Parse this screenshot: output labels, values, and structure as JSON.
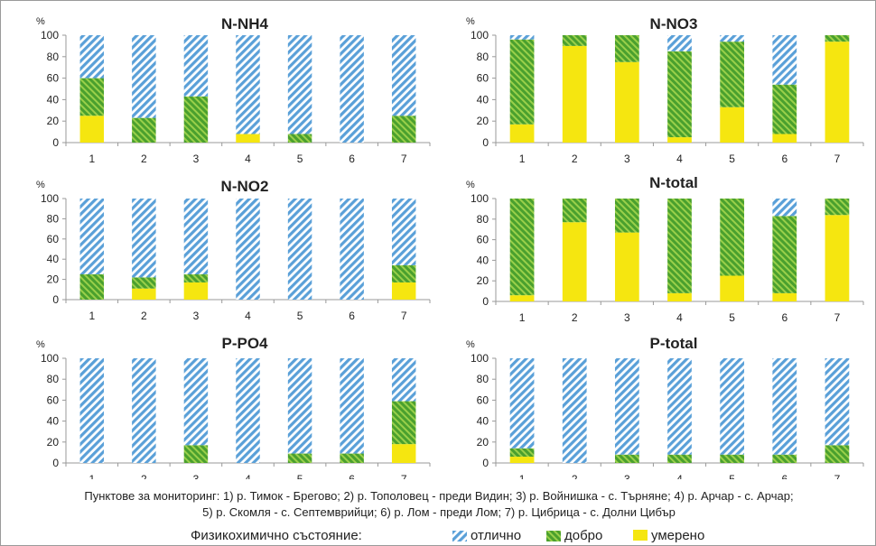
{
  "unit_label": "%",
  "categories_pattern": [
    "отлично",
    "добро",
    "умерено"
  ],
  "colors": {
    "отлично": "#5aa0d8",
    "добро": "#4aa02e",
    "умерено": "#f5e610",
    "axis": "#999999"
  },
  "footnote": {
    "line1": "Пунктове за мониторинг: 1) р. Тимок - Брегово;  2) р. Тополовец - преди Видин;  3) р. Войнишка - с. Търняне;  4)  р. Арчар - с. Арчар;",
    "line2": "5) р. Скомля - с. Септемврийци;  6) р. Лом - преди Лом;  7) р. Цибрица - с. Долни Цибър"
  },
  "legend": {
    "title": "Физикохимично състояние:",
    "items": [
      "отлично",
      "добро",
      "умерено"
    ]
  },
  "chart_data": [
    {
      "type": "bar",
      "stacked": true,
      "title": "N-NH4",
      "categories": [
        "1",
        "2",
        "3",
        "4",
        "5",
        "6",
        "7"
      ],
      "yticks": [
        "0",
        "20",
        "40",
        "60",
        "80",
        "100"
      ],
      "ylim": [
        0,
        100
      ],
      "series": [
        {
          "name": "умерено",
          "values": [
            25,
            0,
            0,
            8,
            0,
            0,
            0
          ]
        },
        {
          "name": "добро",
          "values": [
            35,
            23,
            43,
            0,
            8,
            0,
            25
          ]
        },
        {
          "name": "отлично",
          "values": [
            40,
            77,
            57,
            92,
            92,
            100,
            75
          ]
        }
      ]
    },
    {
      "type": "bar",
      "stacked": true,
      "title": "N-NO3",
      "categories": [
        "1",
        "2",
        "3",
        "4",
        "5",
        "6",
        "7"
      ],
      "yticks": [
        "0",
        "20",
        "40",
        "60",
        "80",
        "100"
      ],
      "ylim": [
        0,
        100
      ],
      "series": [
        {
          "name": "умерено",
          "values": [
            17,
            90,
            75,
            5,
            33,
            8,
            94
          ]
        },
        {
          "name": "добро",
          "values": [
            79,
            10,
            25,
            80,
            61,
            46,
            6
          ]
        },
        {
          "name": "отлично",
          "values": [
            4,
            0,
            0,
            15,
            6,
            46,
            0
          ]
        }
      ]
    },
    {
      "type": "bar",
      "stacked": true,
      "title": "N-NO2",
      "categories": [
        "1",
        "2",
        "3",
        "4",
        "5",
        "6",
        "7"
      ],
      "yticks": [
        "0",
        "20",
        "40",
        "60",
        "80",
        "100"
      ],
      "ylim": [
        0,
        100
      ],
      "series": [
        {
          "name": "умерено",
          "values": [
            0,
            11,
            17,
            0,
            0,
            0,
            17
          ]
        },
        {
          "name": "добро",
          "values": [
            25,
            11,
            8,
            0,
            0,
            0,
            17
          ]
        },
        {
          "name": "отлично",
          "values": [
            75,
            78,
            75,
            100,
            100,
            100,
            66
          ]
        }
      ]
    },
    {
      "type": "bar",
      "stacked": true,
      "title": "N-total",
      "categories": [
        "1",
        "2",
        "3",
        "4",
        "5",
        "6",
        "7"
      ],
      "yticks": [
        "0",
        "20",
        "40",
        "60",
        "80",
        "100"
      ],
      "ylim": [
        0,
        100
      ],
      "series": [
        {
          "name": "умерено",
          "values": [
            6,
            77,
            67,
            8,
            25,
            8,
            84
          ]
        },
        {
          "name": "добро",
          "values": [
            94,
            23,
            33,
            92,
            75,
            75,
            16
          ]
        },
        {
          "name": "отлично",
          "values": [
            0,
            0,
            0,
            0,
            0,
            17,
            0
          ]
        }
      ]
    },
    {
      "type": "bar",
      "stacked": true,
      "title": "P-PO4",
      "categories": [
        "1",
        "2",
        "3",
        "4",
        "5",
        "6",
        "7"
      ],
      "yticks": [
        "0",
        "20",
        "40",
        "60",
        "80",
        "100"
      ],
      "ylim": [
        0,
        100
      ],
      "series": [
        {
          "name": "умерено",
          "values": [
            0,
            0,
            0,
            0,
            0,
            0,
            18
          ]
        },
        {
          "name": "добро",
          "values": [
            0,
            0,
            17,
            0,
            9,
            9,
            41
          ]
        },
        {
          "name": "отлично",
          "values": [
            100,
            100,
            83,
            100,
            91,
            91,
            41
          ]
        }
      ]
    },
    {
      "type": "bar",
      "stacked": true,
      "title": "P-total",
      "categories": [
        "1",
        "2",
        "3",
        "4",
        "5",
        "6",
        "7"
      ],
      "yticks": [
        "0",
        "20",
        "40",
        "60",
        "80",
        "100"
      ],
      "ylim": [
        0,
        100
      ],
      "series": [
        {
          "name": "умерено",
          "values": [
            6,
            0,
            0,
            0,
            0,
            0,
            0
          ]
        },
        {
          "name": "добро",
          "values": [
            8,
            0,
            8,
            8,
            8,
            8,
            17
          ]
        },
        {
          "name": "отлично",
          "values": [
            86,
            100,
            92,
            92,
            92,
            92,
            83
          ]
        }
      ]
    }
  ]
}
